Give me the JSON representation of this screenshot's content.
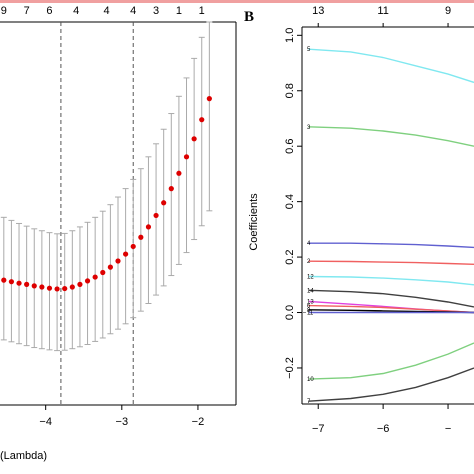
{
  "top_strip_color": "#f0a0a0",
  "chart_data": [
    {
      "type": "scatter",
      "panel": "A",
      "xlabel_visible": "(Lambda)",
      "ylabel": "",
      "title": "",
      "xlim": [
        -4.6,
        -1.5
      ],
      "ylim": [
        0,
        1
      ],
      "x_ticks": [
        -4,
        -3,
        -2
      ],
      "x_tick_labels": [
        "−4",
        "−3",
        "−2"
      ],
      "top_ticks_x": [
        -4.55,
        -4.25,
        -3.95,
        -3.6,
        -3.2,
        -2.85,
        -2.55,
        -2.25,
        -1.95
      ],
      "top_tick_labels": [
        "9",
        "7",
        "6",
        "4",
        "4",
        "4",
        "3",
        "1",
        "1"
      ],
      "vlines": [
        -3.8,
        -2.85
      ],
      "series": [
        {
          "color": "#dd0000",
          "errorbar_color": "#aaaaaa",
          "x": [
            -4.55,
            -4.45,
            -4.35,
            -4.25,
            -4.15,
            -4.05,
            -3.95,
            -3.85,
            -3.75,
            -3.65,
            -3.55,
            -3.45,
            -3.35,
            -3.25,
            -3.15,
            -3.05,
            -2.95,
            -2.85,
            -2.75,
            -2.65,
            -2.55,
            -2.45,
            -2.35,
            -2.25,
            -2.15,
            -2.05,
            -1.95,
            -1.85
          ],
          "y": [
            0.326,
            0.322,
            0.318,
            0.315,
            0.311,
            0.308,
            0.305,
            0.303,
            0.304,
            0.308,
            0.315,
            0.324,
            0.334,
            0.346,
            0.36,
            0.376,
            0.394,
            0.414,
            0.438,
            0.465,
            0.495,
            0.528,
            0.565,
            0.605,
            0.648,
            0.695,
            0.745,
            0.8
          ],
          "lower": [
            0.17,
            0.165,
            0.16,
            0.155,
            0.15,
            0.147,
            0.144,
            0.142,
            0.143,
            0.147,
            0.152,
            0.158,
            0.166,
            0.175,
            0.186,
            0.198,
            0.212,
            0.228,
            0.245,
            0.265,
            0.287,
            0.311,
            0.338,
            0.367,
            0.398,
            0.432,
            0.468,
            0.507
          ],
          "upper": [
            0.49,
            0.482,
            0.474,
            0.467,
            0.46,
            0.455,
            0.45,
            0.447,
            0.448,
            0.455,
            0.465,
            0.477,
            0.49,
            0.506,
            0.523,
            0.543,
            0.565,
            0.589,
            0.617,
            0.648,
            0.682,
            0.72,
            0.761,
            0.806,
            0.854,
            0.905,
            0.96,
            1.0
          ]
        }
      ]
    },
    {
      "type": "line",
      "panel": "B",
      "ylabel": "Coefficients",
      "xlabel": "",
      "title": "",
      "xlim": [
        -7.25,
        -4.6
      ],
      "ylim": [
        -0.33,
        1.03
      ],
      "x_ticks": [
        -7,
        -6,
        -5
      ],
      "x_tick_labels": [
        "−7",
        "−6",
        "−"
      ],
      "y_ticks": [
        -0.2,
        0.0,
        0.2,
        0.4,
        0.6,
        0.8,
        1.0
      ],
      "y_tick_labels": [
        "−0.2",
        "0.0",
        "0.2",
        "0.4",
        "0.6",
        "0.8",
        "1.0"
      ],
      "top_ticks_x": [
        -7.0,
        -6.0,
        -5.0
      ],
      "top_tick_labels": [
        "13",
        "11",
        "9"
      ],
      "line_labels_x": -7.15,
      "series": [
        {
          "label": "5",
          "color": "#80e8f0",
          "x": [
            -7.15,
            -6.5,
            -6.0,
            -5.5,
            -5.0,
            -4.6
          ],
          "y": [
            0.95,
            0.94,
            0.92,
            0.89,
            0.86,
            0.83
          ]
        },
        {
          "label": "3",
          "color": "#7fd07f",
          "x": [
            -7.15,
            -6.5,
            -6.0,
            -5.5,
            -5.0,
            -4.6
          ],
          "y": [
            0.67,
            0.665,
            0.655,
            0.64,
            0.62,
            0.6
          ]
        },
        {
          "label": "4",
          "color": "#6060d0",
          "x": [
            -7.15,
            -6.5,
            -6.0,
            -5.5,
            -5.0,
            -4.6
          ],
          "y": [
            0.25,
            0.25,
            0.248,
            0.245,
            0.24,
            0.235
          ]
        },
        {
          "label": "2",
          "color": "#f06060",
          "x": [
            -7.15,
            -6.5,
            -6.0,
            -5.5,
            -5.0,
            -4.6
          ],
          "y": [
            0.185,
            0.184,
            0.182,
            0.18,
            0.177,
            0.174
          ]
        },
        {
          "label": "12",
          "color": "#80e8f0",
          "x": [
            -7.15,
            -6.5,
            -6.0,
            -5.5,
            -5.0,
            -4.6
          ],
          "y": [
            0.13,
            0.128,
            0.124,
            0.118,
            0.11,
            0.1
          ]
        },
        {
          "label": "14",
          "color": "#404040",
          "x": [
            -7.15,
            -6.5,
            -6.0,
            -5.5,
            -5.0,
            -4.6
          ],
          "y": [
            0.08,
            0.075,
            0.068,
            0.055,
            0.038,
            0.02
          ]
        },
        {
          "label": "13",
          "color": "#e040e0",
          "x": [
            -7.15,
            -6.5,
            -6.0,
            -5.5,
            -5.0,
            -4.6
          ],
          "y": [
            0.04,
            0.03,
            0.022,
            0.013,
            0.005,
            0.0
          ]
        },
        {
          "label": "6",
          "color": "#f06060",
          "x": [
            -7.15,
            -6.5,
            -6.0,
            -5.5,
            -5.0,
            -4.6
          ],
          "y": [
            0.025,
            0.022,
            0.018,
            0.012,
            0.006,
            0.0
          ]
        },
        {
          "label": "8",
          "color": "#000000",
          "x": [
            -7.15,
            -6.5,
            -6.0,
            -5.5,
            -5.0,
            -4.6
          ],
          "y": [
            0.01,
            0.008,
            0.006,
            0.004,
            0.002,
            0.0
          ]
        },
        {
          "label": "11",
          "color": "#6060d0",
          "x": [
            -7.15,
            -6.5,
            -6.0,
            -5.5,
            -5.0,
            -4.6
          ],
          "y": [
            0.0,
            0.0,
            0.0,
            0.0,
            0.0,
            0.0
          ]
        },
        {
          "label": "10",
          "color": "#7fd07f",
          "x": [
            -7.15,
            -6.5,
            -6.0,
            -5.5,
            -5.0,
            -4.6
          ],
          "y": [
            -0.24,
            -0.235,
            -0.22,
            -0.19,
            -0.15,
            -0.11
          ]
        },
        {
          "label": "7",
          "color": "#404040",
          "x": [
            -7.15,
            -6.5,
            -6.0,
            -5.5,
            -5.0,
            -4.6
          ],
          "y": [
            -0.32,
            -0.31,
            -0.295,
            -0.27,
            -0.235,
            -0.2
          ]
        }
      ]
    }
  ],
  "panel_b_letter": "B"
}
